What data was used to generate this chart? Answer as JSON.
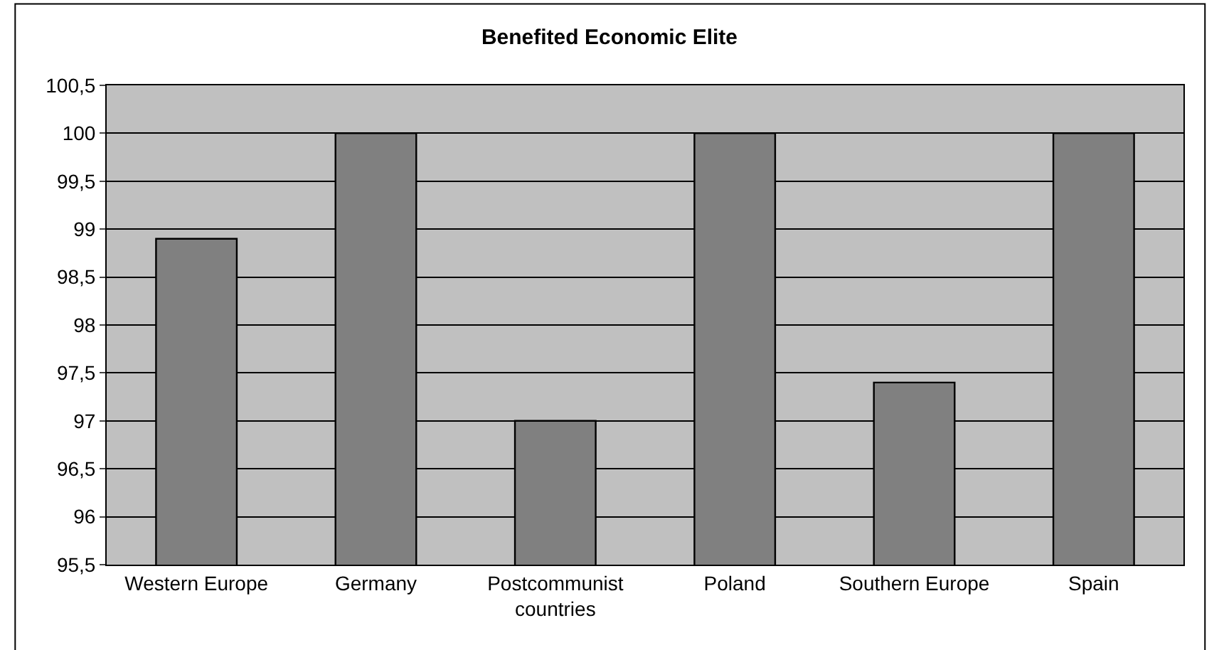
{
  "chart_data": {
    "type": "bar",
    "title": "Benefited Economic Elite",
    "categories": [
      "Western Europe",
      "Germany",
      "Postcommunist countries",
      "Poland",
      "Southern Europe",
      "Spain"
    ],
    "values": [
      98.9,
      100,
      97,
      100,
      97.4,
      100
    ],
    "color": "#808080",
    "ylim": [
      95.5,
      100.5
    ],
    "yticks": [
      {
        "value": 95.5,
        "label": "95,5"
      },
      96,
      {
        "value": 96.5,
        "label": "96,5"
      },
      97,
      {
        "value": 97.5,
        "label": "97,5"
      },
      98,
      {
        "value": 98.5,
        "label": "98,5"
      },
      99,
      {
        "value": 99.5,
        "label": "99,5"
      },
      100,
      {
        "value": 100.5,
        "label": "100,5"
      }
    ],
    "grid": "y",
    "legend": false
  }
}
